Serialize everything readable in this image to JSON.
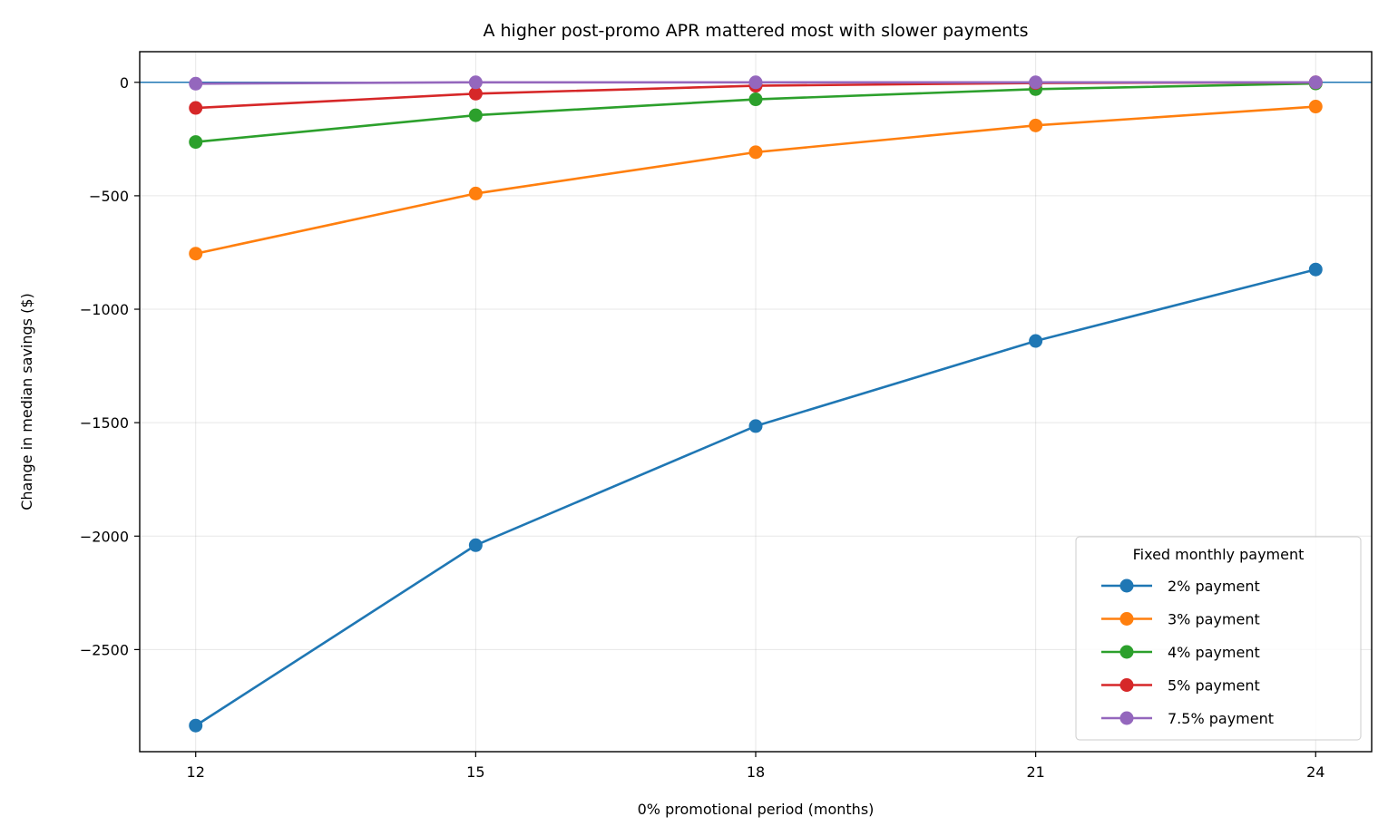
{
  "chart_data": {
    "type": "line",
    "title": "A higher post-promo APR mattered most with slower payments",
    "xlabel": "0% promotional period (months)",
    "ylabel": "Change in median savings ($)",
    "x": [
      12,
      15,
      18,
      21,
      24
    ],
    "xticks": [
      12,
      15,
      18,
      21,
      24
    ],
    "xlim": [
      11.4,
      24.6
    ],
    "yticks": [
      0,
      -500,
      -1000,
      -1500,
      -2000,
      -2500
    ],
    "ytick_labels": [
      "0",
      "−500",
      "−1000",
      "−1500",
      "−2000",
      "−2500"
    ],
    "ylim": [
      -2950,
      135
    ],
    "grid": true,
    "reference_line": {
      "y": 0,
      "color": "#1f77b4"
    },
    "legend": {
      "title": "Fixed monthly payment",
      "position": "lower-right"
    },
    "series": [
      {
        "name": "2% payment",
        "color": "#1f77b4",
        "values": [
          -2835,
          -2040,
          -1515,
          -1140,
          -825
        ]
      },
      {
        "name": "3% payment",
        "color": "#ff7f0e",
        "values": [
          -755,
          -490,
          -308,
          -190,
          -107
        ]
      },
      {
        "name": "4% payment",
        "color": "#2ca02c",
        "values": [
          -263,
          -145,
          -75,
          -30,
          -5
        ]
      },
      {
        "name": "5% payment",
        "color": "#d62728",
        "values": [
          -113,
          -50,
          -15,
          -3,
          0
        ]
      },
      {
        "name": "7.5% payment",
        "color": "#9467bd",
        "values": [
          -6,
          0,
          0,
          0,
          0
        ]
      }
    ]
  }
}
